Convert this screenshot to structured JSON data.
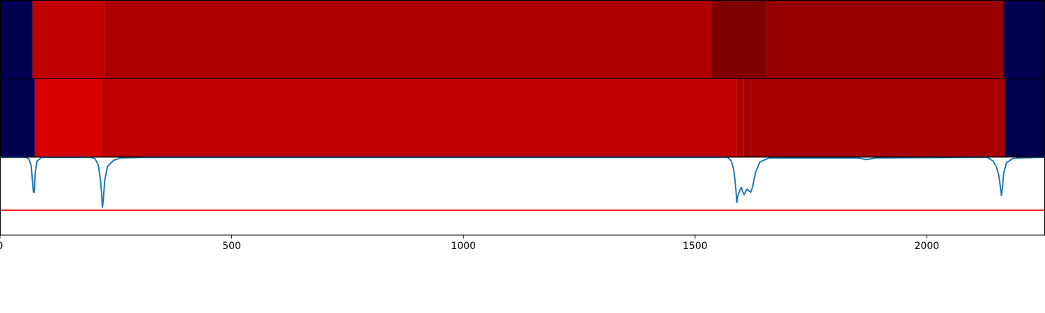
{
  "chart_data": [
    {
      "type": "heatmap",
      "panel": "top",
      "colormap": "seismic",
      "xlim": [
        0,
        2255
      ],
      "segments": [
        {
          "start": 0,
          "end": 70,
          "color": "#000050"
        },
        {
          "start": 70,
          "end": 225,
          "color": "#c00000"
        },
        {
          "start": 225,
          "end": 1535,
          "color": "#ac0000"
        },
        {
          "start": 1535,
          "end": 1655,
          "color": "#800000"
        },
        {
          "start": 1655,
          "end": 2165,
          "color": "#960000"
        },
        {
          "start": 2165,
          "end": 2255,
          "color": "#000050"
        }
      ]
    },
    {
      "type": "heatmap",
      "panel": "middle",
      "colormap": "seismic",
      "xlim": [
        0,
        2255
      ],
      "segments": [
        {
          "start": 0,
          "end": 75,
          "color": "#000050"
        },
        {
          "start": 75,
          "end": 220,
          "color": "#d80000"
        },
        {
          "start": 220,
          "end": 1590,
          "color": "#c00000"
        },
        {
          "start": 1590,
          "end": 1605,
          "color": "#b00000"
        },
        {
          "start": 1605,
          "end": 1620,
          "color": "#a00000"
        },
        {
          "start": 1620,
          "end": 2168,
          "color": "#a80000"
        },
        {
          "start": 2168,
          "end": 2255,
          "color": "#000050"
        }
      ]
    },
    {
      "type": "line",
      "panel": "bottom",
      "xlim": [
        0,
        2255
      ],
      "ylim": [
        -1,
        0
      ],
      "threshold": -0.68,
      "line_color": "#1f77b4",
      "threshold_color": "#ff0000",
      "x": [
        0,
        55,
        62,
        67,
        70,
        72,
        74,
        76,
        80,
        90,
        195,
        205,
        212,
        216,
        219,
        221,
        223,
        226,
        232,
        245,
        260,
        320,
        1570,
        1578,
        1583,
        1587,
        1589,
        1590,
        1592,
        1595,
        1598,
        1600,
        1603,
        1606,
        1609,
        1612,
        1616,
        1620,
        1624,
        1630,
        1640,
        1660,
        1850,
        1870,
        1890,
        2130,
        2143,
        2150,
        2156,
        2159,
        2161,
        2163,
        2166,
        2172,
        2185,
        2200,
        2255
      ],
      "y": [
        0,
        0,
        -0.02,
        -0.1,
        -0.3,
        -0.45,
        -0.45,
        -0.2,
        -0.05,
        0,
        0,
        -0.02,
        -0.1,
        -0.25,
        -0.45,
        -0.64,
        -0.55,
        -0.3,
        -0.12,
        -0.04,
        -0.01,
        0,
        0,
        -0.05,
        -0.15,
        -0.35,
        -0.5,
        -0.58,
        -0.5,
        -0.45,
        -0.4,
        -0.39,
        -0.45,
        -0.48,
        -0.44,
        -0.41,
        -0.43,
        -0.45,
        -0.38,
        -0.2,
        -0.06,
        -0.01,
        -0.01,
        -0.03,
        -0.01,
        0,
        -0.05,
        -0.12,
        -0.25,
        -0.4,
        -0.49,
        -0.4,
        -0.2,
        -0.07,
        -0.02,
        -0.01,
        0
      ],
      "xticks": [
        0,
        500,
        1000,
        1500,
        2000
      ],
      "xtick_labels": [
        "0",
        "500",
        "1000",
        "1500",
        "2000"
      ]
    }
  ]
}
